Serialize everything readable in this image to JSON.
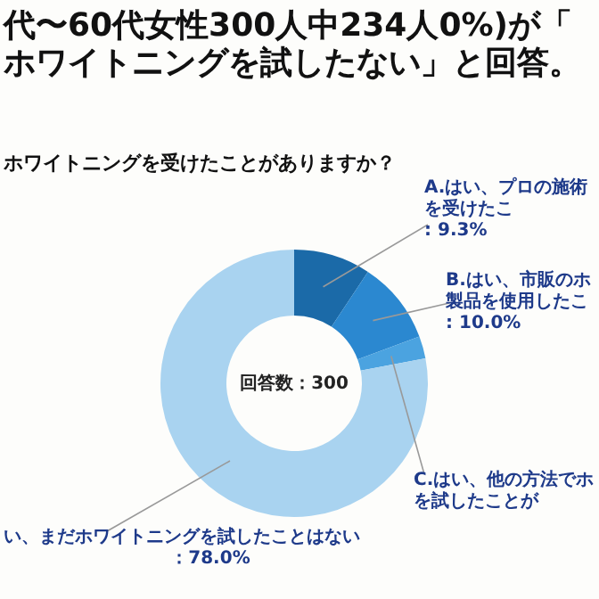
{
  "chart_data": {
    "type": "donut",
    "title": "代〜60代女性300人中234人0%)が「ホワイトニングを試したない」と回答。",
    "subtitle": "ホワイトニングを受けたことがありますか？",
    "categories": [
      "A.はい、プロの施術を受けたこ",
      "B.はい、市販のホ製品を使用したこ",
      "C.はい、他の方法でホを試したことが",
      "い、まだホワイトニングを試したことはない"
    ],
    "values": [
      9.3,
      10.0,
      2.7,
      78.0
    ],
    "colors": [
      "#1b6aa8",
      "#2b88d0",
      "#4ba3e0",
      "#a9d3f0"
    ],
    "value_labels": [
      ": 9.3%",
      ": 10.0%",
      null,
      "：78.0%"
    ],
    "annotations": [
      "回答数：300"
    ]
  }
}
